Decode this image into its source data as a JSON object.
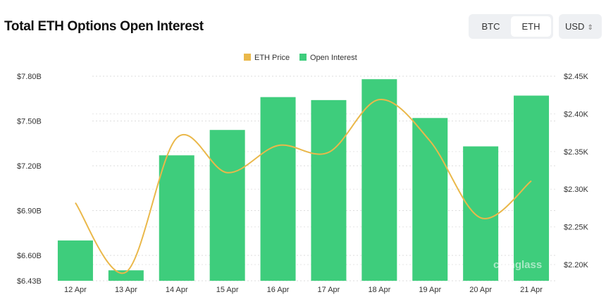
{
  "header": {
    "title": "Total ETH Options Open Interest",
    "toggle": [
      {
        "label": "BTC",
        "active": false
      },
      {
        "label": "ETH",
        "active": true
      }
    ],
    "currency": "USD"
  },
  "watermark": "coinglass",
  "chart_data": {
    "type": "bar",
    "title": "Total ETH Options Open Interest",
    "categories": [
      "12 Apr",
      "13 Apr",
      "14 Apr",
      "15 Apr",
      "16 Apr",
      "17 Apr",
      "18 Apr",
      "19 Apr",
      "20 Apr",
      "21 Apr"
    ],
    "series": [
      {
        "name": "Open Interest",
        "type": "bar",
        "axis": "left",
        "unit": "USD billions",
        "color": "#3ecd7c",
        "values": [
          6.7,
          6.5,
          7.27,
          7.44,
          7.66,
          7.64,
          7.78,
          7.52,
          7.33,
          7.67
        ]
      },
      {
        "name": "ETH Price",
        "type": "line",
        "axis": "right",
        "unit": "USD thousands",
        "color": "#eab84a",
        "values": [
          2.282,
          2.19,
          2.368,
          2.322,
          2.358,
          2.349,
          2.419,
          2.364,
          2.262,
          2.311
        ]
      }
    ],
    "y_left": {
      "range": [
        6.43,
        7.8
      ],
      "ticks": [
        6.43,
        6.6,
        6.9,
        7.2,
        7.5,
        7.8
      ],
      "tick_labels": [
        "$6.43B",
        "$6.60B",
        "$6.90B",
        "$7.20B",
        "$7.50B",
        "$7.80B"
      ]
    },
    "y_right": {
      "range": [
        2.1785,
        2.45
      ],
      "ticks": [
        2.2,
        2.25,
        2.3,
        2.35,
        2.4,
        2.45
      ],
      "tick_labels": [
        "$2.20K",
        "$2.25K",
        "$2.30K",
        "$2.35K",
        "$2.40K",
        "$2.45K"
      ]
    },
    "legend": {
      "placement": "top-center",
      "entries": [
        "ETH Price",
        "Open Interest"
      ]
    },
    "grid": "horizontal dotted"
  }
}
